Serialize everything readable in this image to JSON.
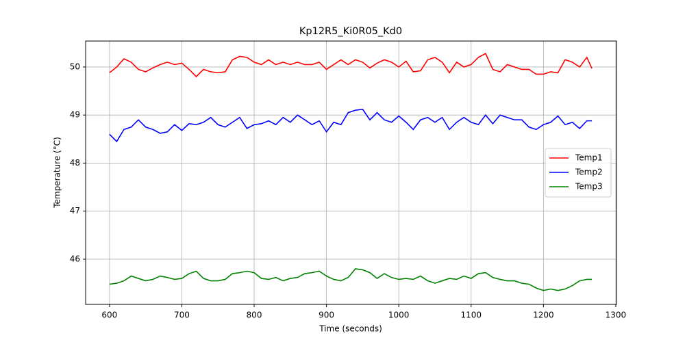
{
  "chart_data": {
    "type": "line",
    "title": "Kp12R5_Ki0R05_Kd0",
    "x_label": "Time (seconds)",
    "y_label": "Temperature (°C)",
    "x": [
      600,
      610,
      620,
      630,
      640,
      650,
      660,
      670,
      680,
      690,
      700,
      710,
      720,
      730,
      740,
      750,
      760,
      770,
      780,
      790,
      800,
      810,
      820,
      830,
      840,
      850,
      860,
      870,
      880,
      890,
      900,
      910,
      920,
      930,
      940,
      950,
      960,
      970,
      980,
      990,
      1000,
      1010,
      1020,
      1030,
      1040,
      1050,
      1060,
      1070,
      1080,
      1090,
      1100,
      1110,
      1120,
      1130,
      1140,
      1150,
      1160,
      1170,
      1180,
      1190,
      1200,
      1210,
      1220,
      1230,
      1240,
      1250,
      1260,
      1267
    ],
    "series": [
      {
        "name": "Temp1",
        "color": "#ff0000",
        "values": [
          49.88,
          50.0,
          50.17,
          50.1,
          49.95,
          49.9,
          49.98,
          50.05,
          50.1,
          50.05,
          50.08,
          49.95,
          49.8,
          49.95,
          49.9,
          49.88,
          49.9,
          50.15,
          50.22,
          50.2,
          50.1,
          50.05,
          50.15,
          50.05,
          50.1,
          50.05,
          50.1,
          50.05,
          50.05,
          50.1,
          49.95,
          50.05,
          50.15,
          50.05,
          50.15,
          50.1,
          49.98,
          50.08,
          50.15,
          50.1,
          50.0,
          50.12,
          49.9,
          49.92,
          50.15,
          50.2,
          50.1,
          49.88,
          50.1,
          50.0,
          50.05,
          50.2,
          50.28,
          49.95,
          49.9,
          50.05,
          50.0,
          49.95,
          49.95,
          49.85,
          49.85,
          49.9,
          49.88,
          50.15,
          50.1,
          50.0,
          50.2,
          49.97
        ]
      },
      {
        "name": "Temp2",
        "color": "#0000ff",
        "values": [
          48.6,
          48.45,
          48.7,
          48.75,
          48.9,
          48.75,
          48.7,
          48.62,
          48.65,
          48.8,
          48.68,
          48.82,
          48.8,
          48.85,
          48.95,
          48.8,
          48.75,
          48.85,
          48.95,
          48.72,
          48.8,
          48.82,
          48.88,
          48.8,
          48.95,
          48.85,
          49.0,
          48.9,
          48.8,
          48.88,
          48.65,
          48.85,
          48.8,
          49.05,
          49.1,
          49.12,
          48.9,
          49.05,
          48.9,
          48.85,
          48.98,
          48.85,
          48.7,
          48.9,
          48.95,
          48.85,
          48.95,
          48.7,
          48.85,
          48.95,
          48.85,
          48.8,
          49.0,
          48.82,
          49.0,
          48.95,
          48.9,
          48.9,
          48.75,
          48.7,
          48.8,
          48.85,
          48.98,
          48.8,
          48.85,
          48.72,
          48.88,
          48.88
        ]
      },
      {
        "name": "Temp3",
        "color": "#008000",
        "values": [
          45.48,
          45.5,
          45.55,
          45.65,
          45.6,
          45.55,
          45.58,
          45.65,
          45.62,
          45.58,
          45.6,
          45.7,
          45.75,
          45.6,
          45.55,
          45.55,
          45.58,
          45.7,
          45.72,
          45.75,
          45.72,
          45.6,
          45.58,
          45.62,
          45.55,
          45.6,
          45.62,
          45.7,
          45.72,
          45.75,
          45.65,
          45.58,
          45.55,
          45.62,
          45.8,
          45.78,
          45.72,
          45.6,
          45.7,
          45.62,
          45.58,
          45.6,
          45.58,
          45.65,
          45.55,
          45.5,
          45.55,
          45.6,
          45.58,
          45.65,
          45.6,
          45.7,
          45.72,
          45.62,
          45.58,
          45.55,
          45.55,
          45.5,
          45.48,
          45.4,
          45.35,
          45.38,
          45.35,
          45.38,
          45.45,
          45.55,
          45.58,
          45.58
        ]
      }
    ],
    "xlim": [
      567,
      1301
    ],
    "xticks": [
      600,
      700,
      800,
      900,
      1000,
      1100,
      1200,
      1300
    ],
    "ylim": [
      45.06,
      50.54
    ],
    "yticks": [
      46,
      47,
      48,
      49,
      50
    ],
    "grid": true,
    "legend": "center right"
  }
}
